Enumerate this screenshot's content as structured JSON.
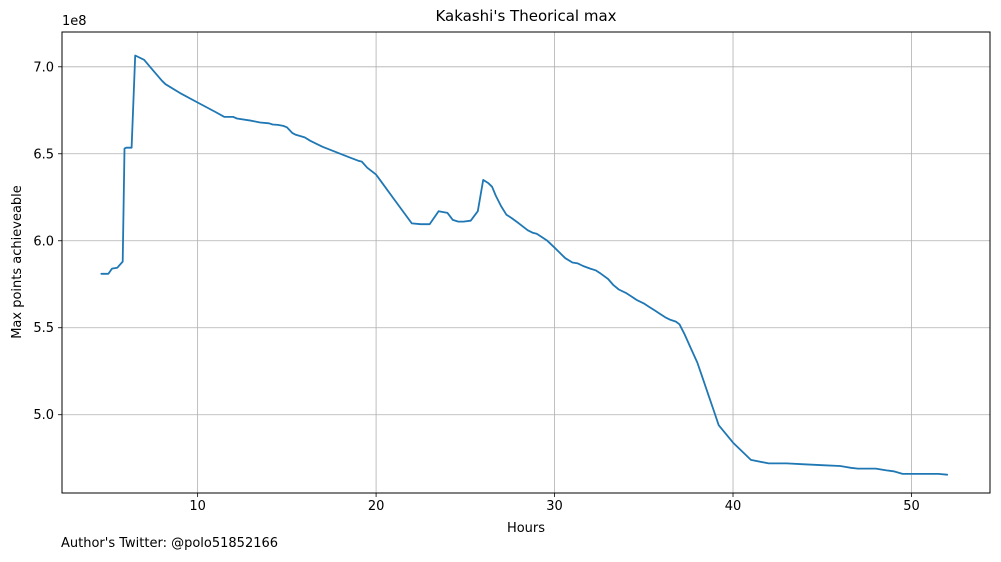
{
  "chart_data": {
    "type": "line",
    "title": "Kakashi's Theorical max",
    "xlabel": "Hours",
    "ylabel": "Max points achieveable",
    "y_scale_label": "1e8",
    "xlim": [
      2.4,
      54.4
    ],
    "ylim": [
      455000000.0,
      720000000.0
    ],
    "xticks": [
      10,
      20,
      30,
      40,
      50
    ],
    "xtick_labels": [
      "10",
      "20",
      "30",
      "40",
      "50"
    ],
    "yticks": [
      500000000.0,
      550000000.0,
      600000000.0,
      650000000.0,
      700000000.0
    ],
    "ytick_labels": [
      "5.0",
      "5.5",
      "6.0",
      "6.5",
      "7.0"
    ],
    "grid": true,
    "series": [
      {
        "color": "#1f77b4",
        "x": [
          4.6,
          5.0,
          5.2,
          5.5,
          5.8,
          5.9,
          6.0,
          6.3,
          6.5,
          7.0,
          7.5,
          8.0,
          8.2,
          9.0,
          10.0,
          11.0,
          11.5,
          12.0,
          12.2,
          13.0,
          13.5,
          14.0,
          14.2,
          14.5,
          14.8,
          15.0,
          15.3,
          15.5,
          16.0,
          16.3,
          16.6,
          17.0,
          17.5,
          18.0,
          18.5,
          19.0,
          19.2,
          19.5,
          20.0,
          21.0,
          22.0,
          22.5,
          23.0,
          23.5,
          24.0,
          24.3,
          24.6,
          24.9,
          25.3,
          25.7,
          26.0,
          26.3,
          26.5,
          26.7,
          27.0,
          27.3,
          27.6,
          28.0,
          28.5,
          28.8,
          29.0,
          29.3,
          29.6,
          30.0,
          30.3,
          30.6,
          31.0,
          31.3,
          31.6,
          32.0,
          32.3,
          32.6,
          33.0,
          33.3,
          33.6,
          34.0,
          34.3,
          34.6,
          35.0,
          35.3,
          35.6,
          35.9,
          36.2,
          36.5,
          36.8,
          37.0,
          37.3,
          37.6,
          38.0,
          38.3,
          38.6,
          38.9,
          39.2,
          40.0,
          41.0,
          42.0,
          43.0,
          44.0,
          45.0,
          46.0,
          46.3,
          46.6,
          47.0,
          47.5,
          48.0,
          48.3,
          48.6,
          49.0,
          49.5,
          50.0,
          50.5,
          51.0,
          51.5,
          52.0
        ],
        "y": [
          581000000.0,
          581000000.0,
          584000000.0,
          584500000.0,
          588000000.0,
          653000000.0,
          653500000.0,
          653500000.0,
          706500000.0,
          704000000.0,
          698000000.0,
          692000000.0,
          690000000.0,
          685000000.0,
          679500000.0,
          674000000.0,
          671200000.0,
          671200000.0,
          670300000.0,
          669000000.0,
          668000000.0,
          667500000.0,
          666800000.0,
          666600000.0,
          666000000.0,
          665200000.0,
          662000000.0,
          660900000.0,
          659400000.0,
          657500000.0,
          656000000.0,
          654000000.0,
          652000000.0,
          650000000.0,
          648000000.0,
          646000000.0,
          645500000.0,
          642000000.0,
          638000000.0,
          624000000.0,
          610000000.0,
          609500000.0,
          609500000.0,
          617000000.0,
          616000000.0,
          612000000.0,
          611000000.0,
          611000000.0,
          611500000.0,
          617000000.0,
          635000000.0,
          633000000.0,
          631000000.0,
          626000000.0,
          620000000.0,
          615000000.0,
          613000000.0,
          610000000.0,
          606000000.0,
          604500000.0,
          604000000.0,
          602000000.0,
          600000000.0,
          596000000.0,
          593000000.0,
          590000000.0,
          587500000.0,
          587000000.0,
          585500000.0,
          584000000.0,
          583000000.0,
          581000000.0,
          578000000.0,
          574500000.0,
          572000000.0,
          570000000.0,
          568000000.0,
          566000000.0,
          564000000.0,
          562000000.0,
          560000000.0,
          558000000.0,
          556000000.0,
          554500000.0,
          553500000.0,
          552000000.0,
          546000000.0,
          539000000.0,
          530000000.0,
          521000000.0,
          512000000.0,
          503000000.0,
          494000000.0,
          484000000.0,
          474000000.0,
          472000000.0,
          472000000.0,
          471500000.0,
          471000000.0,
          470500000.0,
          470000000.0,
          469500000.0,
          469000000.0,
          469000000.0,
          469000000.0,
          468500000.0,
          468000000.0,
          467500000.0,
          466000000.0,
          466000000.0,
          466000000.0,
          466000000.0,
          466000000.0,
          465500000.0
        ]
      }
    ]
  },
  "footer": {
    "credit": "Author's Twitter: @polo51852166"
  }
}
